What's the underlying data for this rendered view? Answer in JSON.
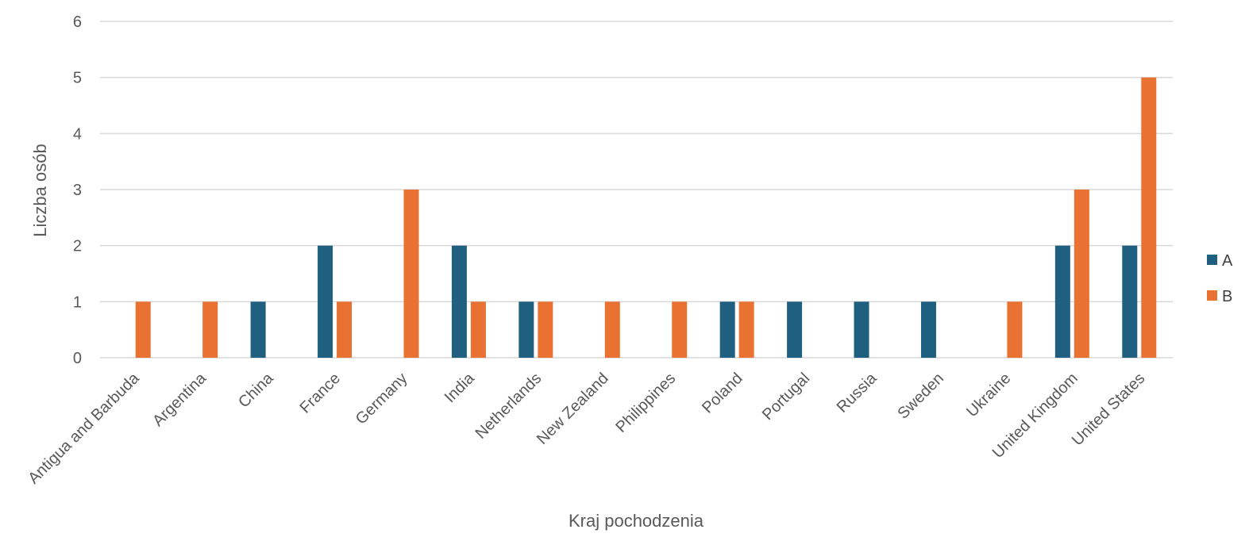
{
  "chart_data": {
    "type": "bar",
    "title": "",
    "xlabel": "Kraj pochodzenia",
    "ylabel": "Liczba osób",
    "ylim": [
      0,
      6
    ],
    "yticks": [
      0,
      1,
      2,
      3,
      4,
      5,
      6
    ],
    "grid": true,
    "legend_position": "right",
    "categories": [
      "Antigua and Barbuda",
      "Argentina",
      "China",
      "France",
      "Germany",
      "India",
      "Netherlands",
      "New Zealand",
      "Philippines",
      "Poland",
      "Portugal",
      "Russia",
      "Sweden",
      "Ukraine",
      "United Kingdom",
      "United States"
    ],
    "series": [
      {
        "name": "A",
        "color": "#1f5f80",
        "values": [
          0,
          0,
          1,
          2,
          0,
          2,
          1,
          0,
          0,
          1,
          1,
          1,
          1,
          0,
          2,
          2
        ]
      },
      {
        "name": "B",
        "color": "#e97132",
        "values": [
          1,
          1,
          0,
          1,
          3,
          1,
          1,
          1,
          1,
          1,
          0,
          0,
          0,
          1,
          3,
          5
        ]
      }
    ]
  }
}
